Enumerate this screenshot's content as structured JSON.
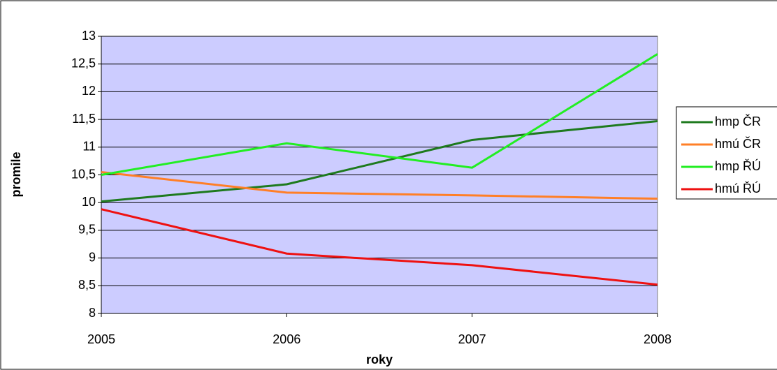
{
  "chart_data": {
    "type": "line",
    "x_label": "roky",
    "y_label": "promile",
    "categories": [
      "2005",
      "2006",
      "2007",
      "2008"
    ],
    "series": [
      {
        "name": "hmp ČR",
        "color": "#1e7a1e",
        "values": [
          10.02,
          10.33,
          11.13,
          11.47
        ]
      },
      {
        "name": "hmú ČR",
        "color": "#ff7f27",
        "values": [
          10.55,
          10.18,
          10.13,
          10.07
        ]
      },
      {
        "name": "hmp ŘÚ",
        "color": "#22ee22",
        "values": [
          10.5,
          11.07,
          10.63,
          12.68
        ]
      },
      {
        "name": "hmú ŘÚ",
        "color": "#ee1111",
        "values": [
          9.88,
          9.08,
          8.87,
          8.52
        ]
      }
    ],
    "ylim": [
      8,
      13
    ],
    "yticks": [
      8,
      {
        "value": 8.5,
        "label": "8,5"
      },
      9,
      {
        "value": 9.5,
        "label": "9,5"
      },
      10,
      {
        "value": 10.5,
        "label": "10,5"
      },
      11,
      {
        "value": 11.5,
        "label": "11,5"
      },
      12,
      {
        "value": 12.5,
        "label": "12,5"
      },
      13
    ],
    "grid": true,
    "plot_background": "#ccccff",
    "legend": "right"
  }
}
